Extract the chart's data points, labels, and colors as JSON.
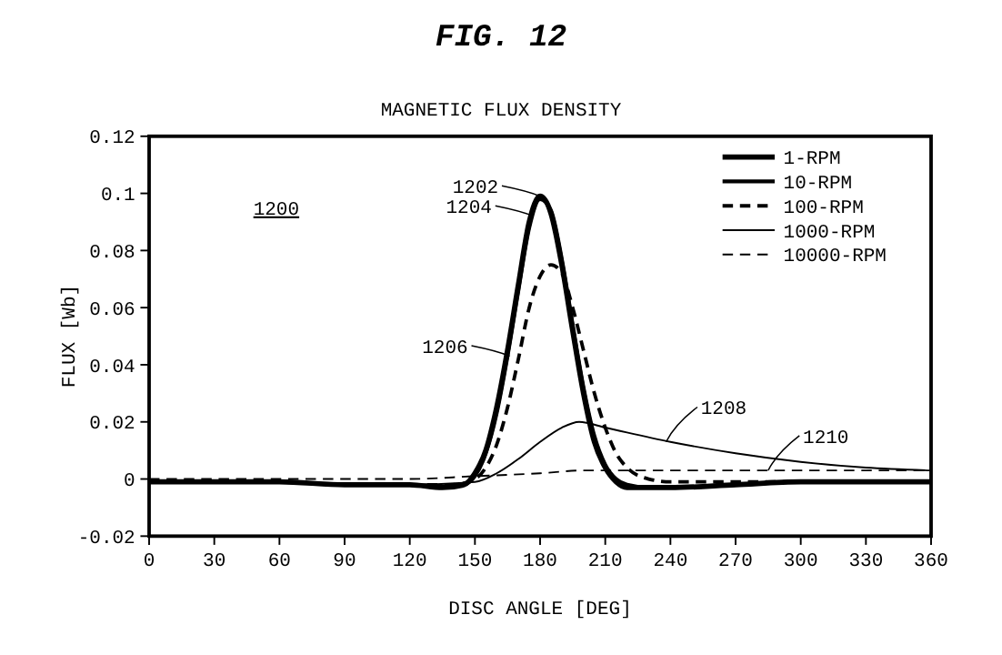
{
  "chart_data": {
    "type": "line",
    "title": "FIG. 12",
    "subtitle": "MAGNETIC FLUX DENSITY",
    "xlabel": "DISC ANGLE [DEG]",
    "ylabel": "FLUX [Wb]",
    "xlim": [
      0,
      360
    ],
    "xticks": [
      0,
      30,
      60,
      90,
      120,
      150,
      180,
      210,
      240,
      270,
      300,
      330,
      360
    ],
    "ylim": [
      -0.02,
      0.12
    ],
    "yticks": [
      -0.02,
      0,
      0.02,
      0.04,
      0.06,
      0.08,
      0.1,
      0.12
    ],
    "legend": "top right",
    "grid": false,
    "series": [
      {
        "name": "1-RPM",
        "color": "#000000",
        "line_style": "solid",
        "x": [
          0,
          30,
          60,
          90,
          120,
          135,
          145,
          150,
          155,
          160,
          165,
          170,
          175,
          180,
          185,
          190,
          195,
          200,
          205,
          210,
          215,
          220,
          230,
          240,
          270,
          300,
          330,
          360
        ],
        "values": [
          -0.001,
          -0.001,
          -0.001,
          -0.002,
          -0.002,
          -0.003,
          -0.002,
          0.002,
          0.01,
          0.025,
          0.045,
          0.068,
          0.09,
          0.099,
          0.093,
          0.075,
          0.052,
          0.03,
          0.013,
          0.004,
          -0.001,
          -0.003,
          -0.003,
          -0.003,
          -0.002,
          -0.001,
          -0.001,
          -0.001
        ]
      },
      {
        "name": "10-RPM",
        "color": "#000000",
        "line_style": "solid",
        "x": [
          0,
          30,
          60,
          90,
          120,
          135,
          145,
          150,
          155,
          160,
          165,
          170,
          175,
          180,
          185,
          190,
          195,
          200,
          205,
          210,
          215,
          220,
          230,
          240,
          270,
          300,
          330,
          360
        ],
        "values": [
          -0.001,
          -0.001,
          -0.001,
          -0.002,
          -0.002,
          -0.003,
          -0.002,
          0.001,
          0.009,
          0.023,
          0.043,
          0.066,
          0.088,
          0.098,
          0.094,
          0.077,
          0.054,
          0.032,
          0.015,
          0.005,
          0,
          -0.002,
          -0.003,
          -0.003,
          -0.002,
          -0.001,
          -0.001,
          -0.001
        ]
      },
      {
        "name": "100-RPM",
        "color": "#000000",
        "line_style": "dashed",
        "x": [
          0,
          30,
          60,
          90,
          120,
          140,
          150,
          155,
          160,
          165,
          170,
          175,
          180,
          185,
          190,
          195,
          200,
          205,
          210,
          215,
          220,
          230,
          240,
          270,
          300,
          330,
          360
        ],
        "values": [
          -0.001,
          -0.001,
          -0.001,
          -0.002,
          -0.002,
          -0.002,
          0,
          0.004,
          0.012,
          0.025,
          0.042,
          0.06,
          0.071,
          0.075,
          0.072,
          0.06,
          0.045,
          0.03,
          0.018,
          0.009,
          0.004,
          0,
          -0.001,
          -0.001,
          -0.001,
          -0.001,
          -0.001
        ]
      },
      {
        "name": "1000-RPM",
        "color": "#000000",
        "line_style": "solid",
        "x": [
          0,
          60,
          120,
          150,
          160,
          170,
          180,
          190,
          198,
          210,
          240,
          270,
          300,
          330,
          360
        ],
        "values": [
          -0.001,
          -0.001,
          -0.002,
          -0.001,
          0.002,
          0.007,
          0.013,
          0.018,
          0.02,
          0.018,
          0.013,
          0.009,
          0.006,
          0.004,
          0.003
        ]
      },
      {
        "name": "10000-RPM",
        "color": "#000000",
        "line_style": "dashed",
        "x": [
          0,
          60,
          120,
          150,
          180,
          200,
          240,
          300,
          360
        ],
        "values": [
          0,
          0,
          0,
          0.001,
          0.002,
          0.003,
          0.003,
          0.003,
          0.003
        ]
      }
    ],
    "annotations": [
      "1200",
      {
        "text": "1202",
        "x": 180,
        "y": 0.099
      },
      {
        "text": "1204",
        "x": 177,
        "y": 0.092
      },
      {
        "text": "1206",
        "x": 166,
        "y": 0.043
      },
      {
        "text": "1208",
        "x": 238,
        "y": 0.013
      },
      {
        "text": "1210",
        "x": 285,
        "y": 0.003
      }
    ]
  }
}
